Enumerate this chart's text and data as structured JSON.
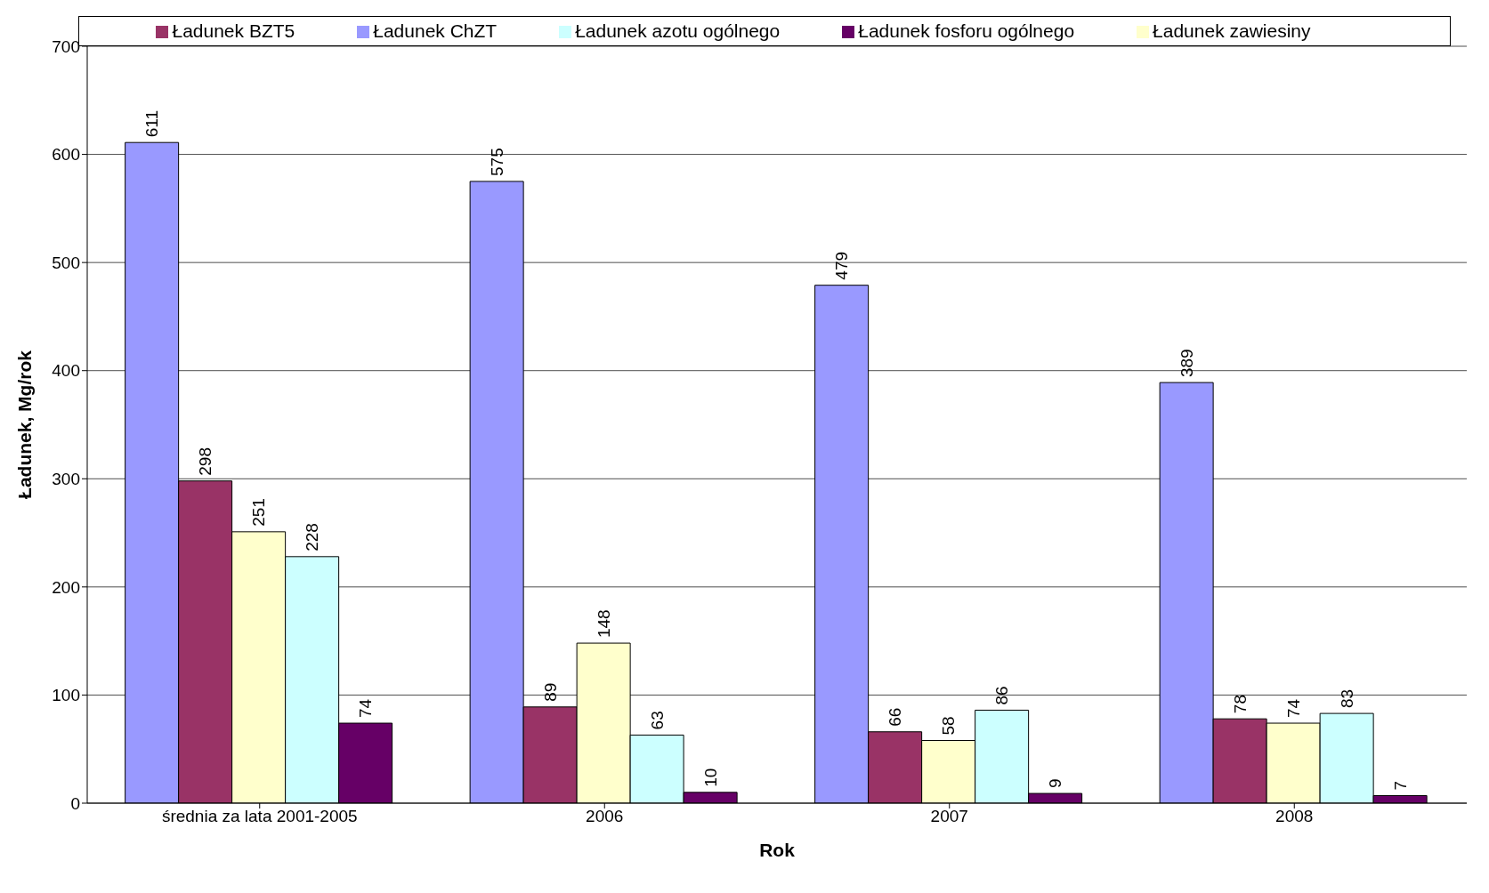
{
  "chart_data": {
    "type": "bar",
    "xlabel": "Rok",
    "ylabel": "Ładunek, Mg/rok",
    "categories": [
      "średnia za lata 2001-2005",
      "2006",
      "2007",
      "2008"
    ],
    "series": [
      {
        "name": "Ładunek ChZT",
        "color": "#9999ff",
        "values": [
          611,
          575,
          479,
          389
        ]
      },
      {
        "name": "Ładunek BZT5",
        "color": "#993366",
        "values": [
          298,
          89,
          66,
          78
        ]
      },
      {
        "name": "Ładunek zawiesiny",
        "color": "#ffffcc",
        "values": [
          251,
          148,
          58,
          74
        ]
      },
      {
        "name": "Ładunek azotu ogólnego",
        "color": "#ccffff",
        "values": [
          228,
          63,
          86,
          83
        ]
      },
      {
        "name": "Ładunek fosforu ogólnego",
        "color": "#660066",
        "values": [
          74,
          10,
          9,
          7
        ]
      }
    ],
    "ylim": [
      0,
      700
    ],
    "yticks": [
      0,
      100,
      200,
      300,
      400,
      500,
      600,
      700
    ],
    "grid": "y",
    "legend": "top",
    "data_labels": true
  }
}
